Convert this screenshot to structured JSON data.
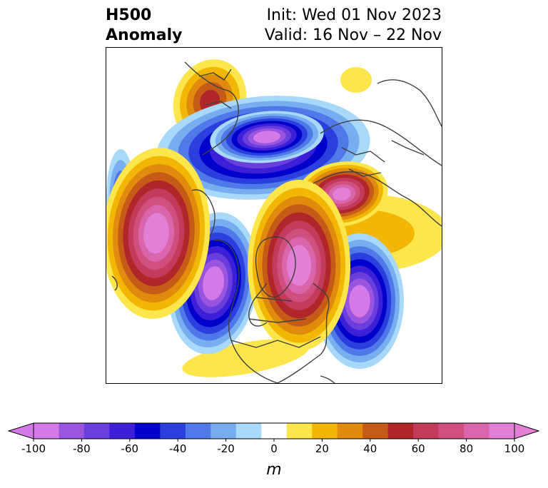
{
  "header": {
    "title_line1": "H500",
    "title_line2": "Anomaly",
    "init_text": "Init: Wed 01 Nov 2023",
    "valid_text": "Valid: 16 Nov – 22 Nov"
  },
  "colorbar": {
    "unit_label": "m",
    "tick_labels": [
      "-100",
      "-80",
      "-60",
      "-40",
      "-20",
      "0",
      "20",
      "40",
      "60",
      "80",
      "100"
    ],
    "levels": [
      -100,
      -90,
      -80,
      -70,
      -60,
      -50,
      -40,
      -30,
      -20,
      -10,
      10,
      20,
      30,
      40,
      50,
      60,
      70,
      80,
      90,
      100
    ],
    "colors": [
      "#d47ae8",
      "#9a55e0",
      "#6a3ddd",
      "#3c1fd6",
      "#0000cc",
      "#2a3fdd",
      "#4f78e8",
      "#78aef0",
      "#a8d8fa",
      "#ffffff",
      "#fde64b",
      "#f2b705",
      "#e08a0e",
      "#c65a17",
      "#b0262b",
      "#c23b5b",
      "#cf4f7f",
      "#d966aa",
      "#e27fd6"
    ],
    "min_color": "#d47ae8",
    "max_color": "#e27fd6"
  },
  "map": {
    "projection": "north-polar-stereographic",
    "coastline_color": "#404040",
    "anomaly_centers": [
      {
        "label": "negative-north-pacific-west",
        "sign": "negative",
        "strength": 100
      },
      {
        "label": "negative-western-canada",
        "sign": "negative",
        "strength": 100
      },
      {
        "label": "negative-siberia-arctic",
        "sign": "negative",
        "strength": 80
      },
      {
        "label": "negative-europe",
        "sign": "negative",
        "strength": 90
      },
      {
        "label": "positive-central-pacific",
        "sign": "positive",
        "strength": 100
      },
      {
        "label": "positive-arctic-greenland",
        "sign": "positive",
        "strength": 100
      },
      {
        "label": "positive-north-atlantic-east",
        "sign": "positive",
        "strength": 80
      },
      {
        "label": "positive-asia-east",
        "sign": "positive",
        "strength": 50
      }
    ]
  }
}
